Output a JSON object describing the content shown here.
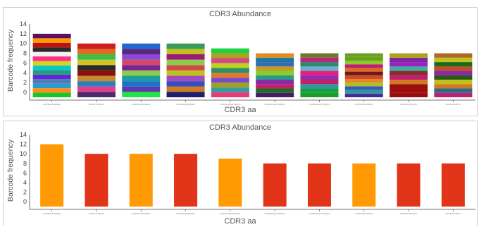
{
  "chart_data": [
    {
      "type": "bar",
      "stacked": true,
      "title": "CDR3 Abundance",
      "xlabel": "CDR3 aa",
      "ylabel": "Barcode frequency",
      "ylim": [
        -1,
        14
      ],
      "yticks": [
        14,
        12,
        10,
        8,
        6,
        4,
        2,
        0
      ],
      "ytick_labels": [
        "14",
        "12",
        "10",
        "8",
        "6",
        "4",
        "2",
        "0"
      ],
      "categories": [
        "CASSEGSGNEQF",
        "CASSYGTEQYF",
        "CASSGTGNTEAFF",
        "CASSIGGNQPQHF",
        "CASSVGQGAYEQYF",
        "CASSPGQGYNEQFF",
        "CASSWGGGTYEQYF",
        "CASSLGGNTEAFF",
        "CASSFGTDTQYF",
        "CASSLGTAPYF"
      ],
      "totals": [
        12,
        10,
        10,
        10,
        9,
        8,
        8,
        8,
        8,
        8
      ],
      "segment_colors": [
        [
          "#15c72b",
          "#ff8c1a",
          "#2b9ad1",
          "#4b7fb3",
          "#6226d6",
          "#1f9e80",
          "#0dc7c7",
          "#d4d422",
          "#ff2e88",
          "#f0f0f0",
          "#2a2a2a",
          "#c20f0f",
          "#ff9900",
          "#5c1060"
        ],
        [
          "#4d2c6e",
          "#e23d8f",
          "#2e7fb8",
          "#c68a2e",
          "#8f0f0f",
          "#2a2a2a",
          "#d0c42a",
          "#3ac04a",
          "#e06a20",
          "#cc2020"
        ],
        [
          "#24e34a",
          "#5c3aa8",
          "#1d72c9",
          "#1d9e9e",
          "#8dcc4a",
          "#7a2398",
          "#d04a6a",
          "#8a4ad8",
          "#5a2a7a",
          "#2566d0"
        ],
        [
          "#1e1e6e",
          "#d07a20",
          "#3a4bbf",
          "#a34ac0",
          "#c0c020",
          "#d04a4a",
          "#8dcc4a",
          "#9a1a7a",
          "#c0c020",
          "#3a9a5a"
        ],
        [
          "#e83a78",
          "#3a9aa0",
          "#a0a020",
          "#7a4acc",
          "#e07a2a",
          "#2d8e6a",
          "#c0d020",
          "#d04a8a",
          "#b0a020",
          "#20d040"
        ],
        [
          "#4a1a6e",
          "#1e6e1e",
          "#c02070",
          "#8a2aa0",
          "#2a9a8a",
          "#8acc2a",
          "#c0a020",
          "#3a6ab8",
          "#1a7aa0",
          "#e08a2a"
        ],
        [
          "#1a9e2a",
          "#1aa03a",
          "#2a9aa0",
          "#c0206a",
          "#9a2ab0",
          "#e0207a",
          "#6ab0d0",
          "#2a8a6a",
          "#c02080",
          "#6a7a2a"
        ],
        [
          "#4a2a9a",
          "#2a9aa0",
          "#3a5ab8",
          "#b0c020",
          "#e08a2a",
          "#d04a2a",
          "#6a1a1a",
          "#e06a20",
          "#c02070",
          "#8acc2a",
          "#6aa020",
          "#6aa020"
        ],
        [
          "#9a0e0e",
          "#9a0e0e",
          "#9a0e0e",
          "#d07a20",
          "#c02070",
          "#8a2a2a",
          "#3ab0a0",
          "#a020c0",
          "#7a2aa0",
          "#b0a020"
        ],
        [
          "#c02070",
          "#2a6a8a",
          "#d07a20",
          "#c0c020",
          "#2a5a1a",
          "#8a2aa0",
          "#c04a2a",
          "#1a6a1a",
          "#c0c020",
          "#b06a20"
        ]
      ]
    },
    {
      "type": "bar",
      "title": "CDR3 Abundance",
      "xlabel": "CDR3 aa",
      "ylabel": "Barcode frequency",
      "ylim": [
        -1,
        14
      ],
      "yticks": [
        14,
        12,
        10,
        8,
        6,
        4,
        2,
        0
      ],
      "ytick_labels": [
        "14",
        "12",
        "10",
        "8",
        "6",
        "4",
        "2",
        "0"
      ],
      "categories": [
        "CASSEGSGNEQF",
        "CASSYGTEQYF",
        "CASSGTGNTEAFF",
        "CASSIGGNQPQHF",
        "CASSVGQGAYEQYF",
        "CASSPGQGYNEQFF",
        "CASSWGGGTYEQYF",
        "CASSLGGNTEAFF",
        "CASSFGTDTQYF",
        "CASSLGTAPYF"
      ],
      "values": [
        12,
        10,
        10,
        10,
        9,
        8,
        8,
        8,
        8,
        8
      ],
      "colors": [
        "#ff9a05",
        "#e23418",
        "#ff9a05",
        "#e23418",
        "#ff9a05",
        "#e23418",
        "#e23418",
        "#ff9a05",
        "#e23418",
        "#e23418"
      ]
    }
  ]
}
